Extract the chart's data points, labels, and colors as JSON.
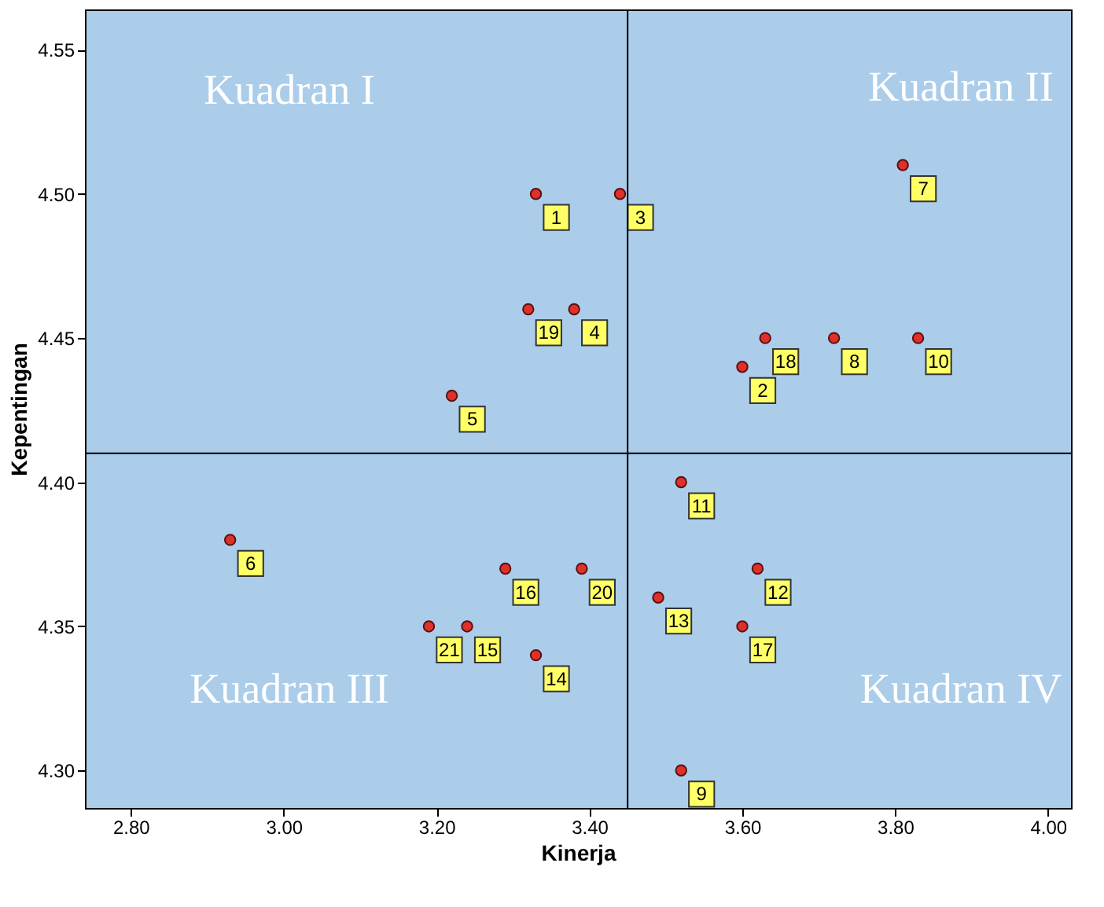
{
  "chart_data": {
    "type": "scatter",
    "xlabel": "Kinerja",
    "ylabel": "Kepentingan",
    "x": [
      3.33,
      3.6,
      3.44,
      3.38,
      3.22,
      2.93,
      3.81,
      3.72,
      3.52,
      3.83,
      3.52,
      3.62,
      3.49,
      3.33,
      3.24,
      3.29,
      3.6,
      3.63,
      3.32,
      3.39,
      3.19
    ],
    "series": [
      {
        "color": "#e0302a",
        "values": [
          4.5,
          4.44,
          4.5,
          4.46,
          4.43,
          4.38,
          4.51,
          4.45,
          4.3,
          4.45,
          4.4,
          4.37,
          4.36,
          4.34,
          4.35,
          4.37,
          4.35,
          4.45,
          4.46,
          4.37,
          4.35
        ]
      }
    ],
    "xlim": [
      2.74,
      4.03
    ],
    "ylim": [
      4.287,
      4.564
    ],
    "xticks": [
      {
        "value": 2.8,
        "label": "2.80"
      },
      {
        "value": 3.0,
        "label": "3.00"
      },
      {
        "value": 3.2,
        "label": "3.20"
      },
      {
        "value": 3.4,
        "label": "3.40"
      },
      {
        "value": 3.6,
        "label": "3.60"
      },
      {
        "value": 3.8,
        "label": "3.80"
      },
      {
        "value": 4.0,
        "label": "4.00"
      }
    ],
    "yticks": [
      {
        "value": 4.3,
        "label": "4.30"
      },
      {
        "value": 4.35,
        "label": "4.35"
      },
      {
        "value": 4.4,
        "label": "4.40"
      },
      {
        "value": 4.45,
        "label": "4.45"
      },
      {
        "value": 4.5,
        "label": "4.50"
      },
      {
        "value": 4.55,
        "label": "4.55"
      }
    ],
    "ref_lines": [
      {
        "axis": "x",
        "value": 3.45,
        "color": "#000000"
      },
      {
        "axis": "y",
        "value": 4.41,
        "color": "#000000"
      }
    ],
    "annotations": [
      "Kuadran I",
      "Kuadran II",
      "Kuadran III",
      "Kuadran IV",
      {
        "text": "1",
        "x": 3.33,
        "y": 4.5
      },
      {
        "text": "2",
        "x": 3.6,
        "y": 4.44
      },
      {
        "text": "3",
        "x": 3.44,
        "y": 4.5
      },
      {
        "text": "4",
        "x": 3.38,
        "y": 4.46
      },
      {
        "text": "5",
        "x": 3.22,
        "y": 4.43
      },
      {
        "text": "6",
        "x": 2.93,
        "y": 4.38
      },
      {
        "text": "7",
        "x": 3.81,
        "y": 4.51
      },
      {
        "text": "8",
        "x": 3.72,
        "y": 4.45
      },
      {
        "text": "9",
        "x": 3.52,
        "y": 4.3
      },
      {
        "text": "10",
        "x": 3.83,
        "y": 4.45
      },
      {
        "text": "11",
        "x": 3.52,
        "y": 4.4
      },
      {
        "text": "12",
        "x": 3.62,
        "y": 4.37
      },
      {
        "text": "13",
        "x": 3.49,
        "y": 4.36
      },
      {
        "text": "14",
        "x": 3.33,
        "y": 4.34
      },
      {
        "text": "15",
        "x": 3.24,
        "y": 4.35
      },
      {
        "text": "16",
        "x": 3.29,
        "y": 4.37
      },
      {
        "text": "17",
        "x": 3.6,
        "y": 4.35
      },
      {
        "text": "18",
        "x": 3.63,
        "y": 4.45
      },
      {
        "text": "19",
        "x": 3.32,
        "y": 4.46
      },
      {
        "text": "20",
        "x": 3.39,
        "y": 4.37
      },
      {
        "text": "21",
        "x": 3.19,
        "y": 4.35
      }
    ],
    "marker": "circle",
    "grid": false
  }
}
